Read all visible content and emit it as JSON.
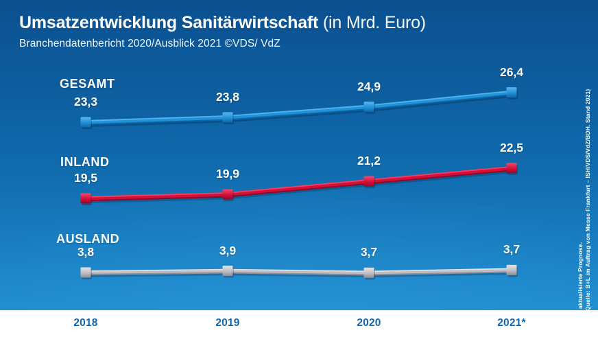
{
  "header": {
    "title_bold": "Umsatzentwicklung Sanitärwirtschaft",
    "title_light": "(in Mrd. Euro)",
    "subtitle": "Branchendatenbericht 2020/Ausblick 2021 ©VDS/ VdZ"
  },
  "source_note": {
    "line1": "* aktualisierte Prognose.",
    "line2": "(Quelle: B+L im Auftrag von Messe Frankfurt – ISH/VDS/VdZ/BDH. Stand 2021)"
  },
  "chart_data": {
    "type": "line",
    "title": "Umsatzentwicklung Sanitärwirtschaft (in Mrd. Euro)",
    "unit": "Mrd. Euro",
    "categories": [
      "2018",
      "2019",
      "2020",
      "2021*"
    ],
    "grid": false,
    "legend_position": "inline-left-of-series",
    "series": [
      {
        "name": "GESAMT",
        "values": [
          23.3,
          23.8,
          24.9,
          26.4
        ],
        "labels": [
          "23,3",
          "23,8",
          "24,9",
          "26,4"
        ],
        "color": "#2092da",
        "color_light": "#5ab5ec",
        "color_dark": "#0d66a6"
      },
      {
        "name": "INLAND",
        "values": [
          19.5,
          19.9,
          21.2,
          22.5
        ],
        "labels": [
          "19,5",
          "19,9",
          "21,2",
          "22,5"
        ],
        "color": "#d50f3a",
        "color_light": "#f04a6a",
        "color_dark": "#8f0926"
      },
      {
        "name": "AUSLAND",
        "values": [
          3.8,
          3.9,
          3.7,
          3.7
        ],
        "labels": [
          "3,8",
          "3,9",
          "3,7",
          "3,7"
        ],
        "color": "#bdbdc3",
        "color_light": "#e4e4e8",
        "color_dark": "#8f8f95"
      }
    ]
  },
  "colors": {
    "background_top": "#0b5090",
    "background_bottom": "#1f8dcf",
    "axis_label": "#1067ae",
    "text": "#ffffff"
  }
}
